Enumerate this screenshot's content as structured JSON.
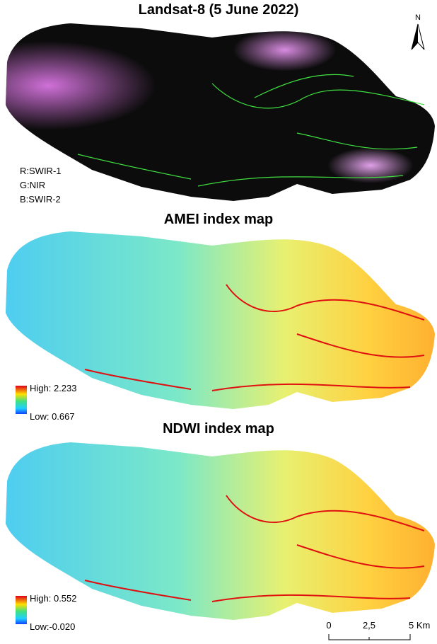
{
  "panels": [
    {
      "title": "Landsat-8 (5 June 2022)",
      "bands": [
        "R:SWIR-1",
        "G:NIR",
        "B:SWIR-2"
      ],
      "north": "N"
    },
    {
      "title": "AMEI index map",
      "legend": {
        "high": "High: 2.233",
        "low": "Low: 0.667"
      }
    },
    {
      "title": "NDWI index map",
      "legend": {
        "high": "High: 0.552",
        "low": "Low:-0.020"
      }
    }
  ],
  "scale_bar": {
    "labels": [
      "0",
      "2,5",
      "5 Km"
    ]
  }
}
